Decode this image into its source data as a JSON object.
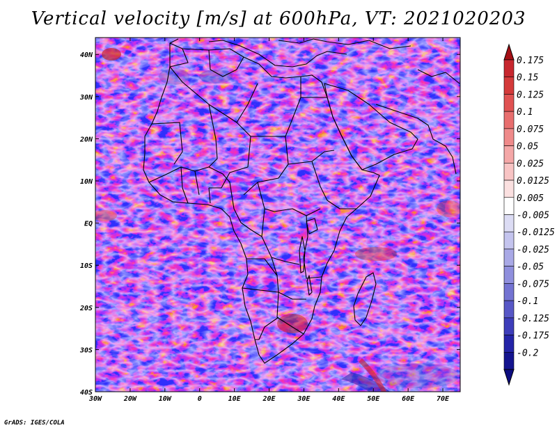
{
  "title": "Vertical velocity [m/s] at 600hPa, VT: 2021020203",
  "credit": "GrADS: IGES/COLA",
  "map": {
    "lon_ticks": [
      "30W",
      "20W",
      "10W",
      "0",
      "10E",
      "20E",
      "30E",
      "40E",
      "50E",
      "60E",
      "70E"
    ],
    "lat_ticks": [
      "40N",
      "30N",
      "20N",
      "10N",
      "EQ",
      "10S",
      "20S",
      "30S",
      "40S"
    ],
    "lon_range": [
      -30,
      75
    ],
    "lat_range": [
      -40,
      44
    ]
  },
  "colorbar": {
    "labels": [
      "0.175",
      "0.15",
      "0.125",
      "0.1",
      "0.075",
      "0.05",
      "0.025",
      "0.0125",
      "0.005",
      "-0.005",
      "-0.0125",
      "-0.025",
      "-0.05",
      "-0.075",
      "-0.1",
      "-0.125",
      "-0.175",
      "-0.2"
    ],
    "colors": [
      "#b2182b",
      "#c7272e",
      "#d43a3a",
      "#e05252",
      "#e86e6e",
      "#ef8a8a",
      "#f4a7a7",
      "#f8c4c4",
      "#fbe0e0",
      "#ffffff",
      "#dcdcf4",
      "#c4c4ee",
      "#a9a9e6",
      "#8f8fdd",
      "#7373d2",
      "#5757c6",
      "#3d3dba",
      "#2424a8",
      "#14148f"
    ],
    "top_color": "#a50f15",
    "bottom_color": "#0d0d80"
  }
}
